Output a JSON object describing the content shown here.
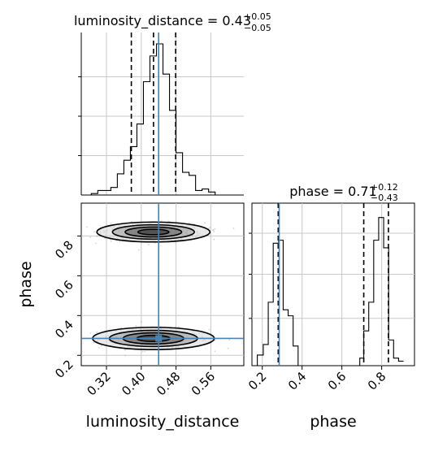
{
  "chart_data": {
    "type": "corner",
    "parameters": [
      "luminosity_distance",
      "phase"
    ],
    "truths": {
      "luminosity_distance": 0.44,
      "phase": 0.285
    },
    "colors": {
      "truth": "#4682b4",
      "hist": "#000000",
      "grid": "#c8c8c8",
      "scatter": "#808080"
    },
    "panels": {
      "luminosity_distance_hist": {
        "title": {
          "name": "luminosity_distance",
          "op": " = ",
          "value": "0.43",
          "plus": "+0.05",
          "minus": "−0.05"
        },
        "x_range": [
          0.262,
          0.636
        ],
        "quantiles": [
          0.3772,
          0.4282,
          0.4792
        ],
        "step_edges": [
          0.27,
          0.285,
          0.3,
          0.315,
          0.33,
          0.345,
          0.36,
          0.375,
          0.39,
          0.405,
          0.42,
          0.435,
          0.45,
          0.465,
          0.48,
          0.495,
          0.51,
          0.525,
          0.54,
          0.555,
          0.57,
          0.585
        ],
        "step_heights": [
          0.0,
          0.01,
          0.03,
          0.03,
          0.05,
          0.14,
          0.23,
          0.32,
          0.47,
          0.75,
          0.92,
          1.0,
          0.8,
          0.56,
          0.28,
          0.15,
          0.13,
          0.03,
          0.04,
          0.02,
          0.0
        ]
      },
      "phase_hist": {
        "title": {
          "name": "phase",
          "op": " = ",
          "value": "0.71",
          "plus": "+0.12",
          "minus": "−0.43"
        },
        "x_range": [
          0.148,
          0.965
        ],
        "quantiles": [
          0.28,
          0.71,
          0.834
        ],
        "step_edges": [
          0.148,
          0.175,
          0.205,
          0.23,
          0.255,
          0.282,
          0.305,
          0.33,
          0.355,
          0.38,
          0.4,
          0.69,
          0.71,
          0.735,
          0.76,
          0.785,
          0.81,
          0.835,
          0.86,
          0.885,
          0.91
        ],
        "step_heights": [
          0.0,
          0.07,
          0.14,
          0.42,
          0.81,
          0.83,
          0.37,
          0.33,
          0.13,
          0.0,
          0.0,
          0.05,
          0.23,
          0.42,
          0.83,
          0.98,
          0.78,
          0.17,
          0.05,
          0.03
        ]
      },
      "joint": {
        "x_range": [
          0.262,
          0.636
        ],
        "y_range": [
          0.148,
          0.965
        ],
        "clusters": [
          {
            "cx": 0.428,
            "cy": 0.285,
            "sx": 0.07,
            "sy": 0.028
          },
          {
            "cx": 0.428,
            "cy": 0.82,
            "sx": 0.065,
            "sy": 0.025
          }
        ]
      }
    },
    "x_ticks_distance": [
      "0.32",
      "0.40",
      "0.48",
      "0.56"
    ],
    "x_tick_values_distance": [
      0.32,
      0.4,
      0.48,
      0.56
    ],
    "ticks_phase": [
      "0.2",
      "0.4",
      "0.6",
      "0.8"
    ],
    "tick_values_phase": [
      0.2,
      0.4,
      0.6,
      0.8
    ],
    "xlabel_distance": "luminosity_distance",
    "xlabel_phase": "phase",
    "ylabel_phase": "phase"
  }
}
